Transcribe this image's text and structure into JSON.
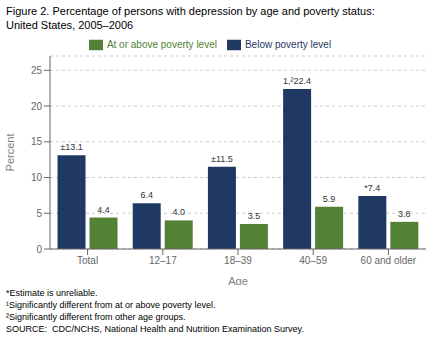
{
  "chart_data": {
    "type": "bar",
    "title": "Figure 2. Percentage of persons with depression by age and poverty status:",
    "subtitle": "United States, 2005–2006",
    "categories": [
      "Total",
      "12–17",
      "18–39",
      "40–59",
      "60 and older"
    ],
    "series": [
      {
        "name": "Below poverty level",
        "color": "#1f3864",
        "values": [
          13.1,
          6.4,
          11.5,
          22.4,
          7.4
        ],
        "value_labels": [
          "±13.1",
          "6.4",
          "±11.5",
          "1,²22.4",
          "*7.4"
        ]
      },
      {
        "name": "At or above poverty level",
        "color": "#538135",
        "values": [
          4.4,
          4.0,
          3.5,
          5.9,
          3.8
        ],
        "value_labels": [
          "4.4",
          "4.0",
          "3.5",
          "5.9",
          "3.8"
        ]
      }
    ],
    "xlabel": "Age",
    "ylabel": "Percent",
    "ylim": [
      0,
      27
    ],
    "yticks": [
      0,
      5,
      10,
      15,
      20,
      25
    ],
    "grid": true,
    "legend": "top",
    "data_labels": true,
    "annotations": [
      "*Estimate is unreliable.",
      "¹Significantly different from at or above poverty level.",
      "²Significantly different from other age groups.",
      "SOURCE:  CDC/NCHS, National Health and Nutrition Examination Survey."
    ]
  }
}
